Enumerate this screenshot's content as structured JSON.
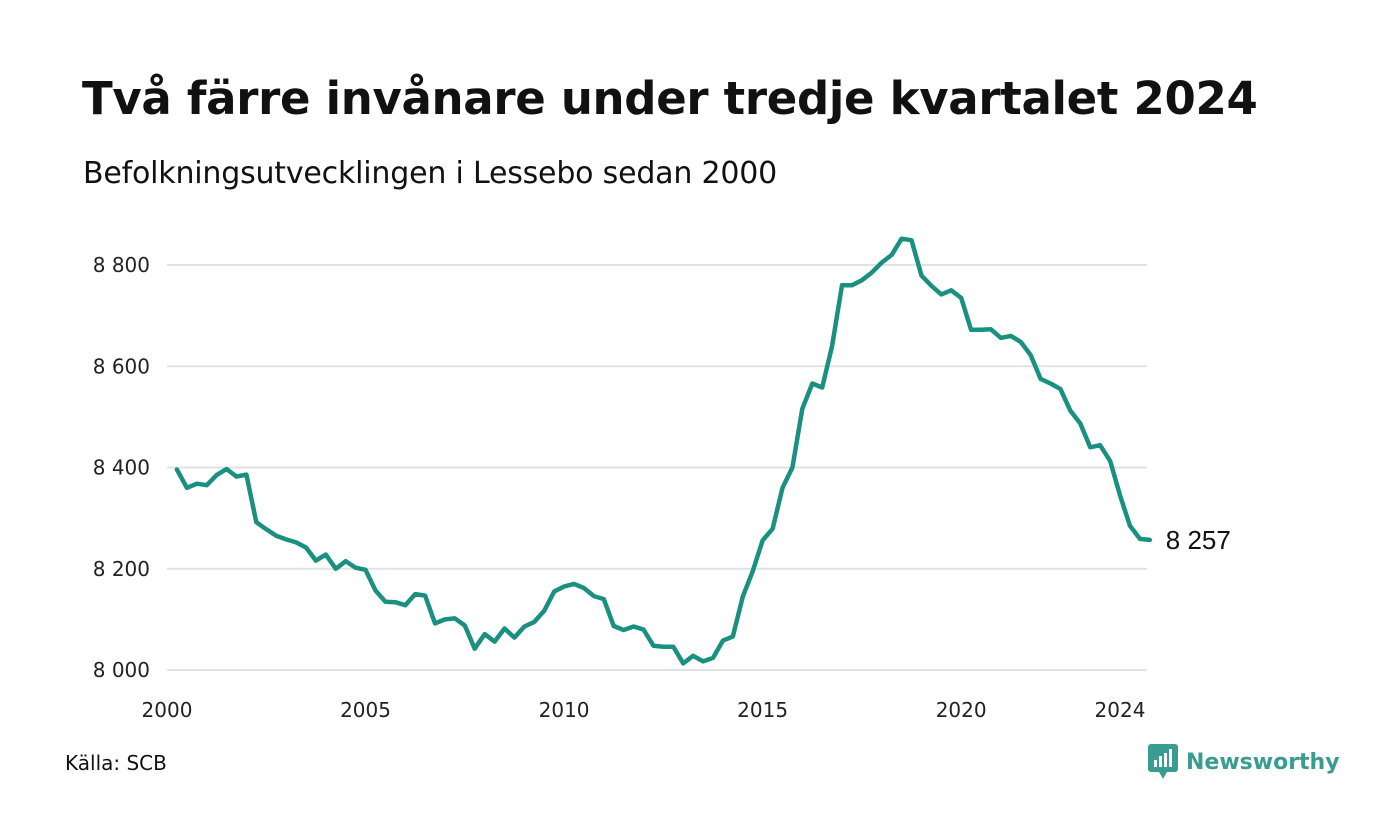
{
  "title": "Två färre invånare under tredje kvartalet 2024",
  "subtitle": "Befolkningsutvecklingen i Lessebo sedan 2000",
  "source": "Källa: SCB",
  "brand": {
    "name": "Newsworthy",
    "icon": "newsworthy-logo-icon",
    "color": "#3a9c90"
  },
  "colors": {
    "line": "#1a9080",
    "grid": "#e2e2e2"
  },
  "chart_data": {
    "type": "line",
    "title": "Två färre invånare under tredje kvartalet 2024",
    "subtitle": "Befolkningsutvecklingen i Lessebo sedan 2000",
    "xlim": [
      2000,
      2024.75
    ],
    "ylim": [
      7970,
      8870
    ],
    "x_ticks": [
      2000,
      2005,
      2010,
      2015,
      2020,
      2024
    ],
    "x_tick_labels": [
      "2000",
      "2005",
      "2010",
      "2015",
      "2020",
      "2024"
    ],
    "y_ticks": [
      8000,
      8200,
      8400,
      8600,
      8800
    ],
    "y_tick_labels": [
      "8 000",
      "8 200",
      "8 400",
      "8 600",
      "8 800"
    ],
    "grid": "horizontal",
    "end_label": "8 257",
    "x_step": 0.25,
    "x_start": 2000.25,
    "values": [
      8396,
      8360,
      8368,
      8365,
      8385,
      8397,
      8382,
      8386,
      8292,
      8278,
      8265,
      8258,
      8252,
      8242,
      8216,
      8228,
      8200,
      8215,
      8202,
      8198,
      8157,
      8135,
      8134,
      8128,
      8150,
      8147,
      8092,
      8100,
      8102,
      8088,
      8042,
      8071,
      8056,
      8082,
      8064,
      8086,
      8095,
      8117,
      8155,
      8165,
      8170,
      8162,
      8146,
      8140,
      8087,
      8079,
      8086,
      8080,
      8048,
      8046,
      8046,
      8013,
      8028,
      8017,
      8024,
      8058,
      8066,
      8145,
      8195,
      8256,
      8279,
      8360,
      8400,
      8516,
      8566,
      8558,
      8640,
      8760,
      8760,
      8770,
      8785,
      8805,
      8820,
      8852,
      8849,
      8779,
      8759,
      8742,
      8750,
      8735,
      8672,
      8672,
      8673,
      8656,
      8660,
      8648,
      8622,
      8575,
      8566,
      8555,
      8512,
      8487,
      8440,
      8444,
      8413,
      8345,
      8285,
      8259,
      8257
    ]
  }
}
